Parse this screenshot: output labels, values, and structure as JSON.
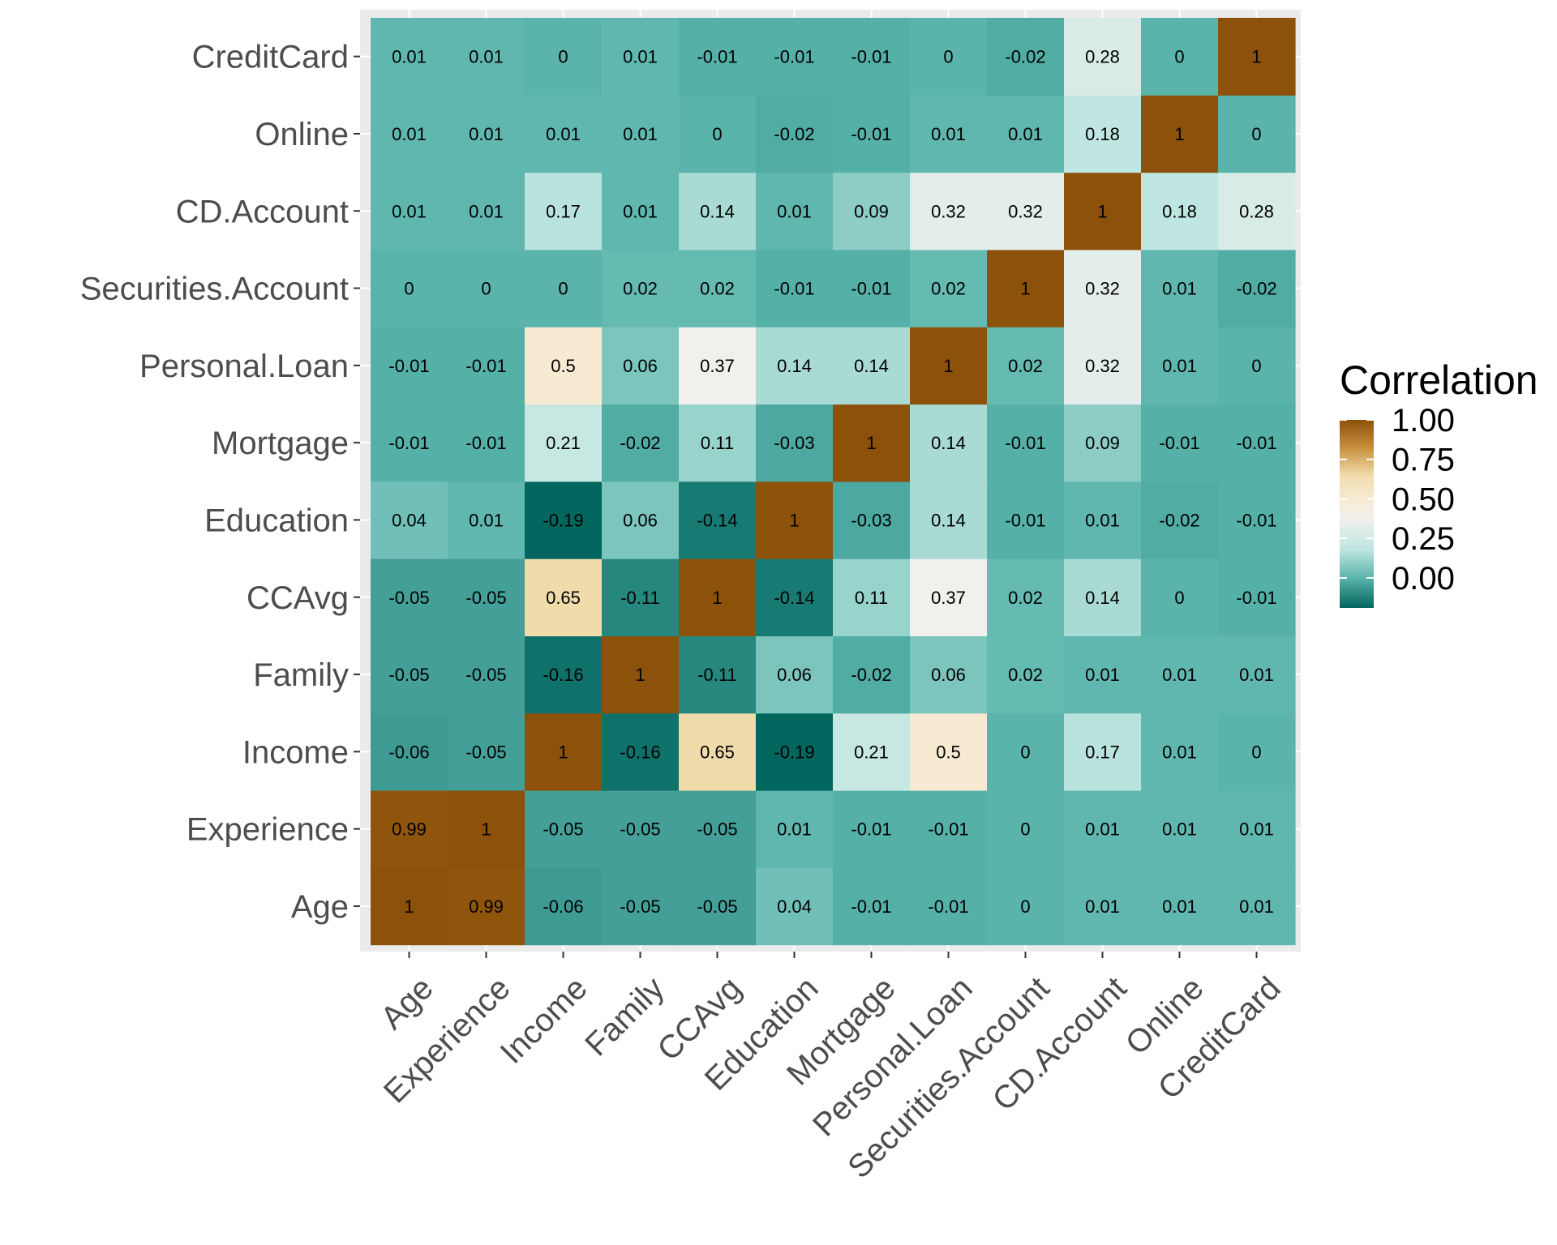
{
  "chart_data": {
    "type": "heatmap",
    "variables": [
      "Age",
      "Experience",
      "Income",
      "Family",
      "CCAvg",
      "Education",
      "Mortgage",
      "Personal.Loan",
      "Securities.Account",
      "CD.Account",
      "Online",
      "CreditCard"
    ],
    "x_categories": [
      "Age",
      "Experience",
      "Income",
      "Family",
      "CCAvg",
      "Education",
      "Mortgage",
      "Personal.Loan",
      "Securities.Account",
      "CD.Account",
      "Online",
      "CreditCard"
    ],
    "y_categories_bottom_to_top": [
      "Age",
      "Experience",
      "Income",
      "Family",
      "CCAvg",
      "Education",
      "Mortgage",
      "Personal.Loan",
      "Securities.Account",
      "CD.Account",
      "Online",
      "CreditCard"
    ],
    "matrix": [
      [
        1,
        0.99,
        -0.06,
        -0.05,
        -0.05,
        0.04,
        -0.01,
        -0.01,
        0,
        0.01,
        0.01,
        0.01
      ],
      [
        0.99,
        1,
        -0.05,
        -0.05,
        -0.05,
        0.01,
        -0.01,
        -0.01,
        0,
        0.01,
        0.01,
        0.01
      ],
      [
        -0.06,
        -0.05,
        1,
        -0.16,
        0.65,
        -0.19,
        0.21,
        0.5,
        0,
        0.17,
        0.01,
        0
      ],
      [
        -0.05,
        -0.05,
        -0.16,
        1,
        -0.11,
        0.06,
        -0.02,
        0.06,
        0.02,
        0.01,
        0.01,
        0.01
      ],
      [
        -0.05,
        -0.05,
        0.65,
        -0.11,
        1,
        -0.14,
        0.11,
        0.37,
        0.02,
        0.14,
        0,
        -0.01
      ],
      [
        0.04,
        0.01,
        -0.19,
        0.06,
        -0.14,
        1,
        -0.03,
        0.14,
        -0.01,
        0.01,
        -0.02,
        -0.01
      ],
      [
        -0.01,
        -0.01,
        0.21,
        -0.02,
        0.11,
        -0.03,
        1,
        0.14,
        -0.01,
        0.09,
        -0.01,
        -0.01
      ],
      [
        -0.01,
        -0.01,
        0.5,
        0.06,
        0.37,
        0.14,
        0.14,
        1,
        0.02,
        0.32,
        0.01,
        0
      ],
      [
        0,
        0,
        0,
        0.02,
        0.02,
        -0.01,
        -0.01,
        0.02,
        1,
        0.32,
        0.01,
        -0.02
      ],
      [
        0.01,
        0.01,
        0.17,
        0.01,
        0.14,
        0.01,
        0.09,
        0.32,
        0.32,
        1,
        0.18,
        0.28
      ],
      [
        0.01,
        0.01,
        0.01,
        0.01,
        0,
        -0.02,
        -0.01,
        0.01,
        0.01,
        0.18,
        1,
        0
      ],
      [
        0.01,
        0.01,
        0,
        0.01,
        -0.01,
        -0.01,
        -0.01,
        0,
        -0.02,
        0.28,
        0,
        1
      ]
    ],
    "legend": {
      "title": "Correlation",
      "ticks": [
        "1.00",
        "0.75",
        "0.50",
        "0.25",
        "0.00"
      ],
      "placement": "right"
    },
    "color_scale": {
      "min_value": -0.19,
      "max_value": 1,
      "stops": [
        {
          "value": -0.19,
          "color": "#01665e"
        },
        {
          "value": 0.0,
          "color": "#5ab4ac"
        },
        {
          "value": 0.18,
          "color": "#bfe6e0"
        },
        {
          "value": 0.37,
          "color": "#f0f0ec"
        },
        {
          "value": 0.5,
          "color": "#f6ebd2"
        },
        {
          "value": 0.65,
          "color": "#f0dbab"
        },
        {
          "value": 0.82,
          "color": "#c8913e"
        },
        {
          "value": 1.0,
          "color": "#8c510a"
        }
      ]
    },
    "panel_background": "#ebebeb",
    "grid": true
  }
}
